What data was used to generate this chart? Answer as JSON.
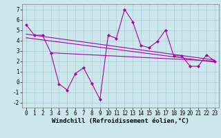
{
  "x": [
    0,
    1,
    2,
    3,
    4,
    5,
    6,
    7,
    8,
    9,
    10,
    11,
    12,
    13,
    14,
    15,
    16,
    17,
    18,
    19,
    20,
    21,
    22,
    23
  ],
  "y_main": [
    5.5,
    4.5,
    4.5,
    2.8,
    -0.2,
    -0.8,
    0.8,
    1.35,
    -0.15,
    -1.7,
    4.5,
    4.2,
    7.0,
    5.8,
    3.5,
    3.3,
    3.9,
    5.0,
    2.5,
    2.5,
    1.5,
    1.5,
    2.6,
    2.0
  ],
  "trend1_x": [
    0,
    23
  ],
  "trend1_y": [
    4.6,
    2.1
  ],
  "trend2_x": [
    0,
    23
  ],
  "trend2_y": [
    4.25,
    1.9
  ],
  "trend3_x": [
    3,
    23
  ],
  "trend3_y": [
    2.8,
    2.0
  ],
  "line_color": "#aa00aa",
  "bg_color": "#cce8ec",
  "grid_color": "#aaccd4",
  "xlabel": "Windchill (Refroidissement éolien,°C)",
  "ylim": [
    -2.5,
    7.5
  ],
  "xlim": [
    -0.5,
    23.5
  ],
  "yticks": [
    -2,
    -1,
    0,
    1,
    2,
    3,
    4,
    5,
    6,
    7
  ],
  "xticks": [
    0,
    1,
    2,
    3,
    4,
    5,
    6,
    7,
    8,
    9,
    10,
    11,
    12,
    13,
    14,
    15,
    16,
    17,
    18,
    19,
    20,
    21,
    22,
    23
  ],
  "xlabel_fontsize": 6.5,
  "tick_fontsize": 5.5,
  "line_width": 0.8,
  "marker_size": 2.2
}
